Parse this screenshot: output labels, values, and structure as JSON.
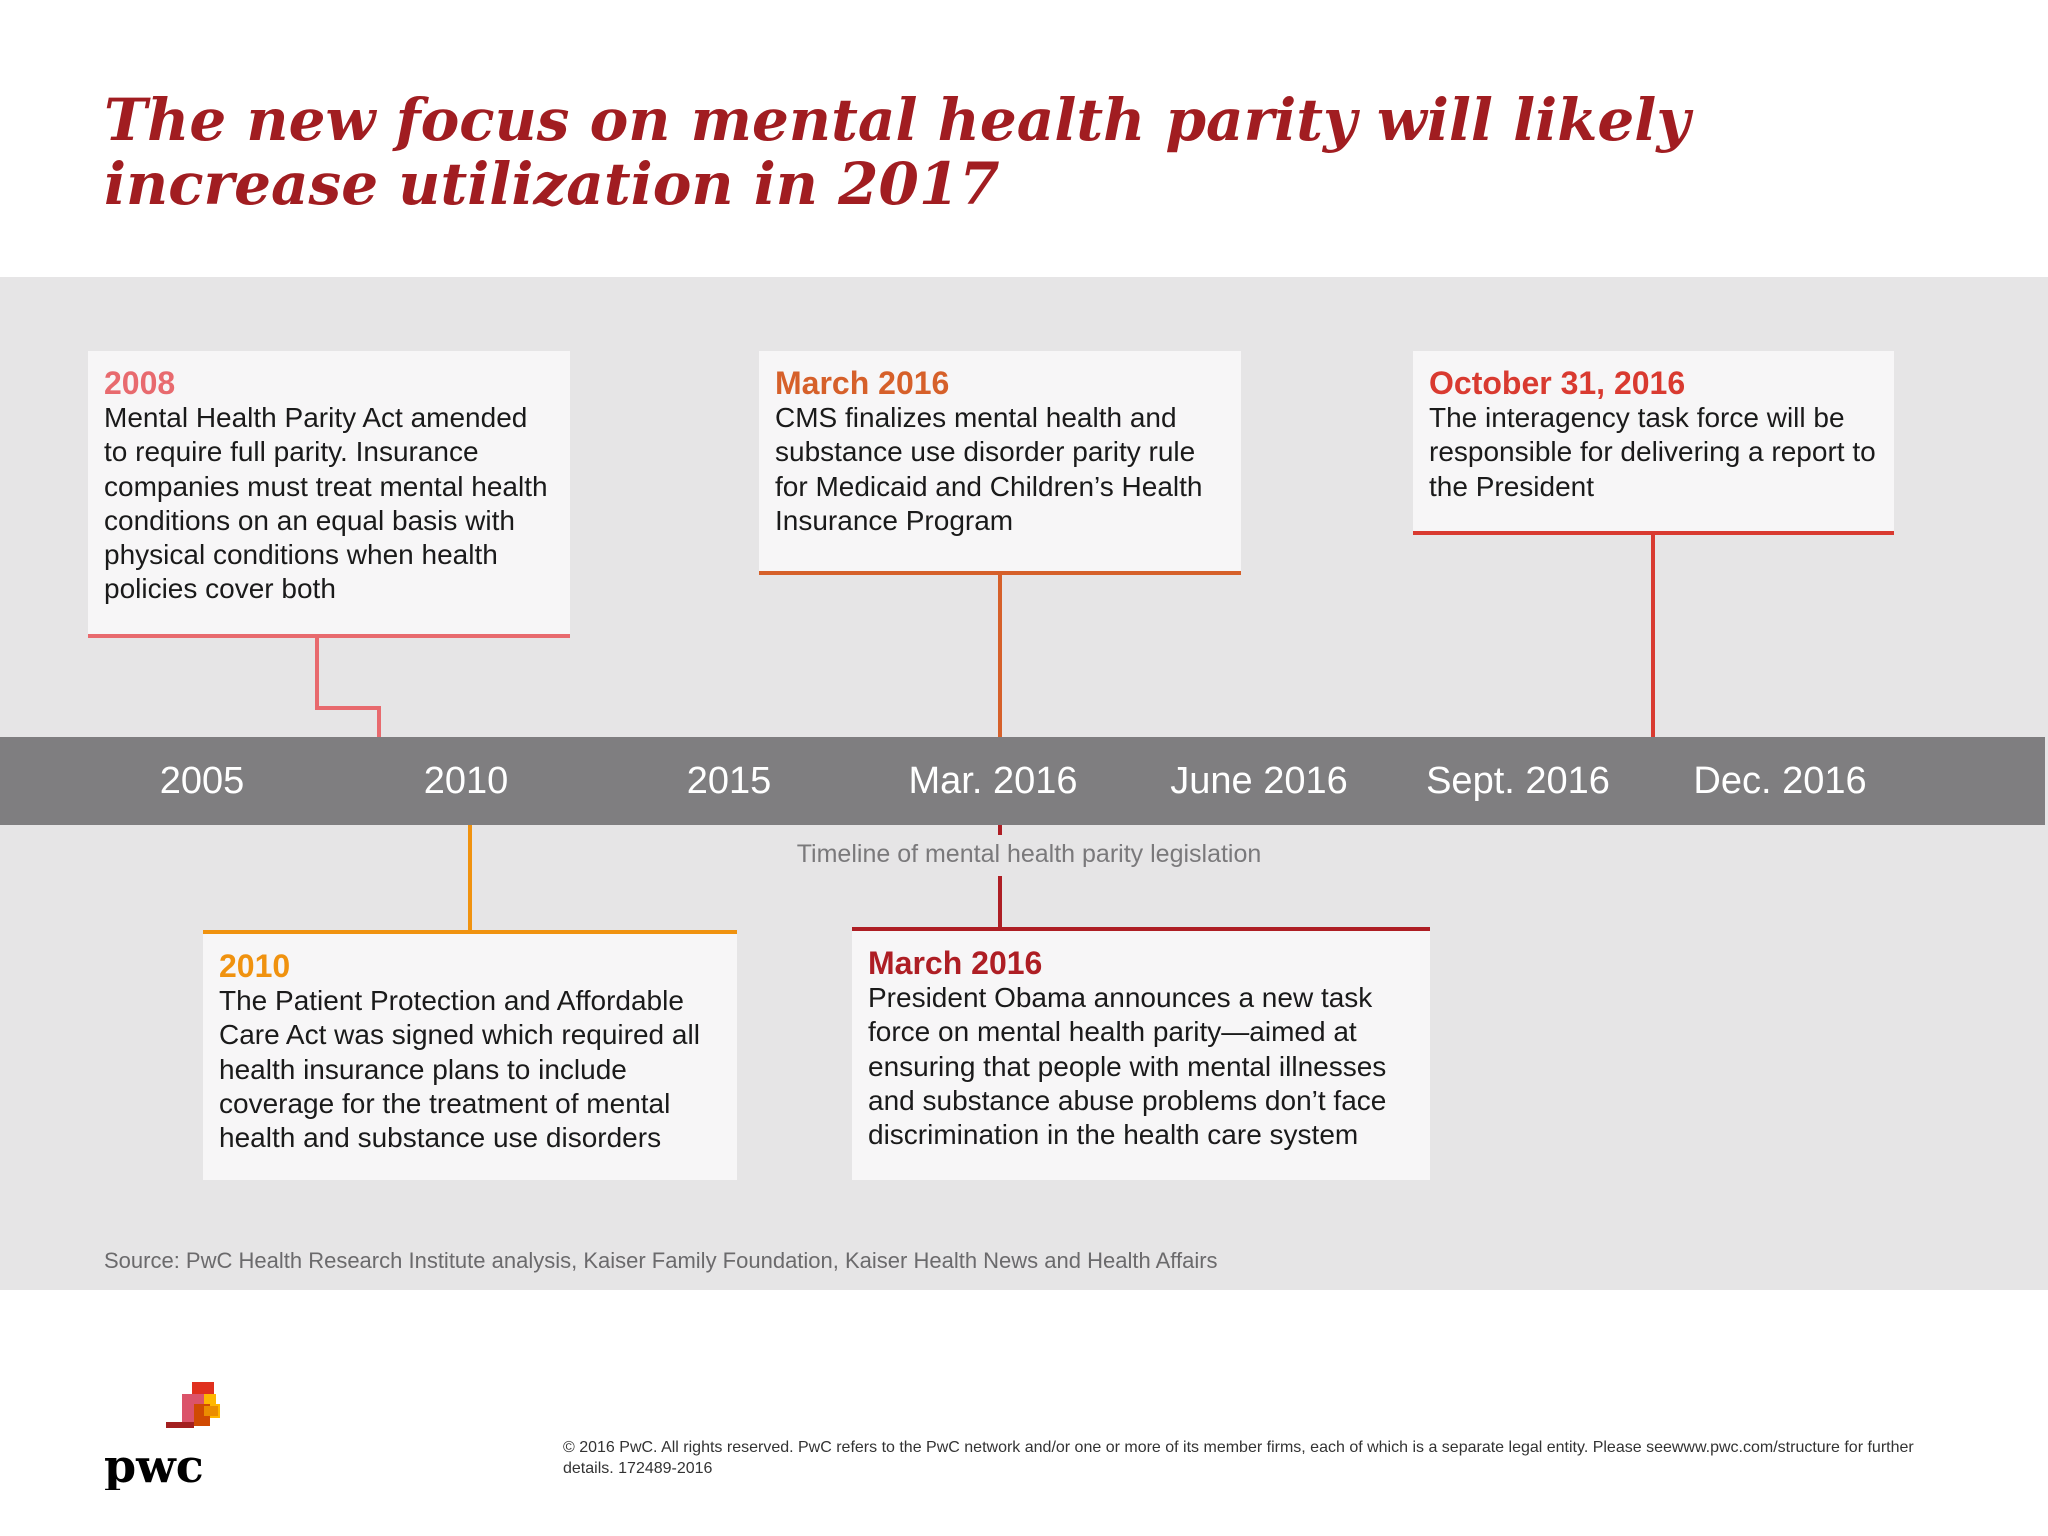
{
  "title": "The new focus on mental health parity will likely increase utilization in 2017",
  "colors": {
    "title": "#a11d21",
    "event_2008": "#e86a6e",
    "event_2010": "#f0920f",
    "event_mar2016_cms": "#d6602a",
    "event_mar2016_obama": "#ae1e24",
    "event_oct2016": "#d93a30",
    "axis": "#7f7e80",
    "background_band": "#e6e5e6"
  },
  "timeline": {
    "ticks": [
      "2005",
      "2010",
      "2015",
      "Mar. 2016",
      "June 2016",
      "Sept. 2016",
      "Dec. 2016"
    ],
    "caption": "Timeline of mental health parity legislation"
  },
  "events": [
    {
      "date": "2008",
      "description": "Mental Health Parity Act amended to require full parity. Insurance companies must treat mental health conditions on an equal basis with physical conditions when health policies cover both"
    },
    {
      "date": "March 2016",
      "description": "CMS finalizes mental health and substance use disorder parity rule for Medicaid and Children’s Health Insurance Program"
    },
    {
      "date": "October 31, 2016",
      "description": "The interagency task force will be responsible for delivering a report to the President"
    },
    {
      "date": "2010",
      "description": "The Patient Protection and Affordable Care Act was signed which required all health insurance plans to include coverage for the treatment of mental health and substance use disorders"
    },
    {
      "date": "March 2016",
      "description": "President Obama announces a new task force on mental health parity—aimed at ensuring that people with mental illnesses and substance abuse problems don’t face discrimination in the health care system"
    }
  ],
  "source": "Source: PwC Health Research Institute analysis, Kaiser Family Foundation, Kaiser Health News and Health Affairs",
  "logo_text": "pwc",
  "legal": "© 2016 PwC. All rights reserved. PwC refers to the PwC network and/or one or more of its member firms, each of which is a separate legal entity. Please seewww.pwc.com/structure for further details. 172489-2016"
}
